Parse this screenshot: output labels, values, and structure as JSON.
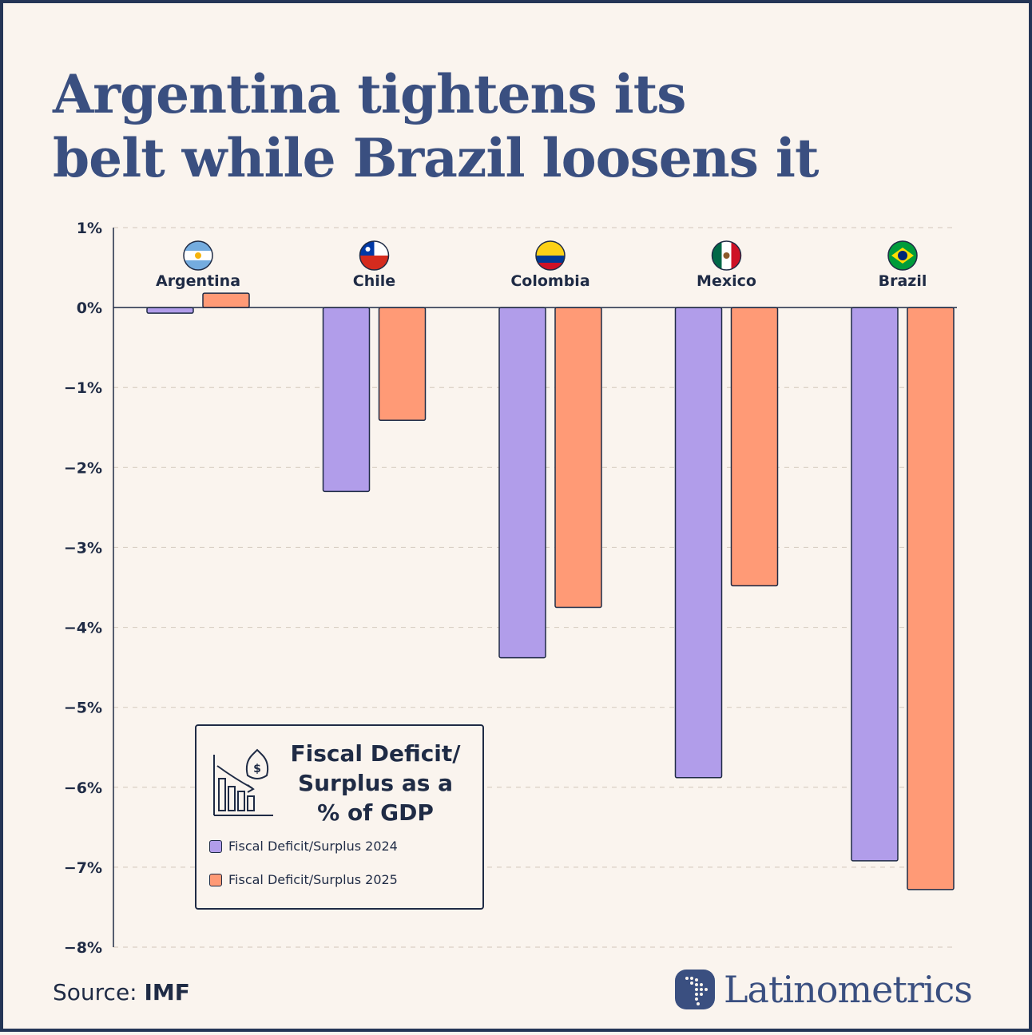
{
  "title_line1": "Argentina tightens its",
  "title_line2": "belt while Brazil loosens it",
  "chart_data": {
    "type": "bar",
    "categories": [
      "Argentina",
      "Chile",
      "Colombia",
      "Mexico",
      "Brazil"
    ],
    "series": [
      {
        "name": "Fiscal Deficit/Surplus 2024",
        "color": "#b19dea",
        "values": [
          -0.07,
          -2.3,
          -4.38,
          -5.88,
          -6.92
        ]
      },
      {
        "name": "Fiscal Deficit/Surplus 2025",
        "color": "#ff9a76",
        "values": [
          0.18,
          -1.41,
          -3.75,
          -3.48,
          -7.28
        ]
      }
    ],
    "ylim": [
      -8,
      1
    ],
    "yticks": [
      1,
      0,
      -1,
      -2,
      -3,
      -4,
      -5,
      -6,
      -7,
      -8
    ],
    "ytick_labels": [
      "1%",
      "0%",
      "−1%",
      "−2%",
      "−3%",
      "−4%",
      "−5%",
      "−6%",
      "−7%",
      "−8%"
    ],
    "grid": true,
    "legend_placement": "bottom-left",
    "flags": [
      "argentina-flag-icon",
      "chile-flag-icon",
      "colombia-flag-icon",
      "mexico-flag-icon",
      "brazil-flag-icon"
    ]
  },
  "legend": {
    "title_line1": "Fiscal Deficit/",
    "title_line2": "Surplus as a",
    "title_line3": "% of GDP",
    "icon": "money-bag-bar-chart-icon"
  },
  "source": {
    "label": "Source:",
    "value": "IMF"
  },
  "brand": {
    "name": "Latinometrics",
    "icon": "latin-america-map-icon"
  }
}
